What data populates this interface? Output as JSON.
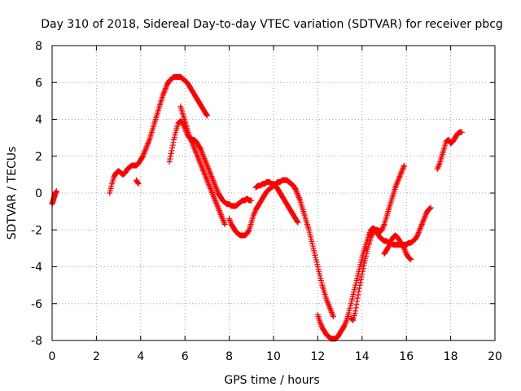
{
  "chart_data": {
    "type": "scatter",
    "title": "Day 310 of 2018, Sidereal Day-to-day VTEC variation (SDTVAR) for receiver pbcg",
    "xlabel": "GPS time / hours",
    "ylabel": "SDTVAR / TECUs",
    "xlim": [
      0,
      20
    ],
    "ylim": [
      -8,
      8
    ],
    "xticks": [
      0,
      2,
      4,
      6,
      8,
      10,
      12,
      14,
      16,
      18,
      20
    ],
    "yticks": [
      -8,
      -6,
      -4,
      -2,
      0,
      2,
      4,
      6,
      8
    ],
    "grid": true,
    "marker": "+",
    "color": "#ff0000",
    "segments": [
      {
        "x": [
          0.0,
          0.05,
          0.1,
          0.15,
          0.2
        ],
        "y": [
          -0.6,
          -0.4,
          -0.2,
          0.0,
          0.1
        ]
      },
      {
        "x": [
          2.6,
          2.7,
          2.8,
          2.9,
          3.0,
          3.1,
          3.2,
          3.3,
          3.4,
          3.5,
          3.6,
          3.7,
          3.8,
          3.9,
          4.0,
          4.1,
          4.2,
          4.3,
          4.4,
          4.5,
          4.6,
          4.7,
          4.8,
          4.9,
          5.0,
          5.1,
          5.2,
          5.3,
          5.4,
          5.5,
          5.6,
          5.7,
          5.8,
          5.9,
          6.0,
          6.1,
          6.2,
          6.3,
          6.4,
          6.5,
          6.6,
          6.7,
          6.8,
          6.9,
          7.0
        ],
        "y": [
          0.0,
          0.5,
          0.9,
          1.1,
          1.2,
          1.1,
          1.0,
          1.1,
          1.3,
          1.4,
          1.5,
          1.5,
          1.5,
          1.6,
          1.8,
          2.0,
          2.3,
          2.6,
          2.9,
          3.3,
          3.7,
          4.1,
          4.5,
          4.9,
          5.3,
          5.6,
          5.9,
          6.1,
          6.2,
          6.3,
          6.3,
          6.3,
          6.3,
          6.2,
          6.1,
          6.0,
          5.8,
          5.6,
          5.4,
          5.2,
          5.0,
          4.8,
          4.6,
          4.4,
          4.2
        ]
      },
      {
        "x": [
          3.8,
          3.9
        ],
        "y": [
          0.7,
          0.5
        ]
      },
      {
        "x": [
          5.3,
          5.4,
          5.5,
          5.6,
          5.7,
          5.8,
          5.9,
          6.0,
          6.1,
          6.2,
          6.3,
          6.4,
          6.5,
          6.6,
          6.7,
          6.8,
          6.9,
          7.0,
          7.1,
          7.2,
          7.3,
          7.4,
          7.5,
          7.6,
          7.7,
          7.8,
          7.9,
          8.0,
          8.1,
          8.2,
          8.3,
          8.4,
          8.5,
          8.6,
          8.7,
          8.8,
          8.9,
          9.0
        ],
        "y": [
          1.7,
          2.3,
          2.9,
          3.4,
          3.8,
          3.9,
          3.8,
          3.5,
          3.2,
          3.0,
          2.9,
          2.9,
          2.8,
          2.6,
          2.4,
          2.1,
          1.8,
          1.5,
          1.2,
          0.9,
          0.6,
          0.3,
          0.0,
          -0.2,
          -0.4,
          -0.5,
          -0.6,
          -0.6,
          -0.7,
          -0.7,
          -0.7,
          -0.6,
          -0.5,
          -0.4,
          -0.4,
          -0.3,
          -0.4,
          -0.4
        ]
      },
      {
        "x": [
          5.8,
          5.9,
          6.0,
          6.1,
          6.2,
          6.3,
          6.4,
          6.5,
          6.6,
          6.7,
          6.8,
          6.9,
          7.0,
          7.1,
          7.2,
          7.3,
          7.4,
          7.5,
          7.6,
          7.7,
          7.8
        ],
        "y": [
          4.7,
          4.3,
          3.9,
          3.5,
          3.1,
          2.8,
          2.5,
          2.2,
          1.9,
          1.6,
          1.3,
          1.0,
          0.7,
          0.4,
          0.1,
          -0.2,
          -0.5,
          -0.8,
          -1.1,
          -1.4,
          -1.7
        ]
      },
      {
        "x": [
          8.0,
          8.1,
          8.2,
          8.3,
          8.4,
          8.5,
          8.6,
          8.7,
          8.8,
          8.9,
          9.0,
          9.1,
          9.2,
          9.3,
          9.4,
          9.5,
          9.6,
          9.7,
          9.8,
          9.9,
          10.0,
          10.1,
          10.2,
          10.3,
          10.4,
          10.5,
          10.6,
          10.7,
          10.8,
          10.9,
          11.0,
          11.1,
          11.2,
          11.3,
          11.4,
          11.5,
          11.6,
          11.7,
          11.8,
          11.9,
          12.0,
          12.1,
          12.2,
          12.3,
          12.4,
          12.5,
          12.6,
          12.7
        ],
        "y": [
          -1.4,
          -1.7,
          -1.9,
          -2.1,
          -2.2,
          -2.3,
          -2.3,
          -2.3,
          -2.2,
          -2.0,
          -1.6,
          -1.2,
          -0.9,
          -0.7,
          -0.5,
          -0.3,
          -0.1,
          0.1,
          0.2,
          0.3,
          0.4,
          0.5,
          0.6,
          0.6,
          0.7,
          0.7,
          0.7,
          0.6,
          0.5,
          0.4,
          0.2,
          -0.1,
          -0.4,
          -0.8,
          -1.2,
          -1.6,
          -2.0,
          -2.5,
          -3.0,
          -3.5,
          -4.0,
          -4.5,
          -5.0,
          -5.4,
          -5.8,
          -6.1,
          -6.4,
          -6.7
        ]
      },
      {
        "x": [
          9.2,
          9.3,
          9.4,
          9.5,
          9.6,
          9.7,
          9.8,
          9.9,
          10.0,
          10.1,
          10.2,
          10.3,
          10.4,
          10.5,
          10.6,
          10.7,
          10.8,
          10.9,
          11.0,
          11.1
        ],
        "y": [
          0.3,
          0.4,
          0.4,
          0.5,
          0.5,
          0.6,
          0.6,
          0.5,
          0.5,
          0.4,
          0.2,
          0.0,
          -0.2,
          -0.4,
          -0.6,
          -0.8,
          -1.0,
          -1.2,
          -1.4,
          -1.6
        ]
      },
      {
        "x": [
          12.0,
          12.1,
          12.2,
          12.3,
          12.4,
          12.5,
          12.6,
          12.7,
          12.8,
          12.9,
          13.0,
          13.1,
          13.2,
          13.3,
          13.4,
          13.5,
          13.6,
          13.7,
          13.8,
          13.9,
          14.0,
          14.1,
          14.2,
          14.3,
          14.4,
          14.5,
          14.6,
          14.7,
          14.8,
          14.9,
          15.0,
          15.1,
          15.2,
          15.3,
          15.4,
          15.5,
          15.6,
          15.7,
          15.8,
          15.9,
          16.0,
          16.1,
          16.2,
          16.3,
          16.4,
          16.5,
          16.6,
          16.7,
          16.8,
          16.9,
          17.0,
          17.1
        ],
        "y": [
          -6.6,
          -7.0,
          -7.3,
          -7.5,
          -7.7,
          -7.8,
          -7.9,
          -7.9,
          -7.9,
          -7.8,
          -7.6,
          -7.4,
          -7.2,
          -6.9,
          -6.5,
          -6.0,
          -5.5,
          -5.0,
          -4.5,
          -4.0,
          -3.5,
          -3.1,
          -2.7,
          -2.3,
          -2.0,
          -1.9,
          -2.0,
          -2.2,
          -2.4,
          -2.5,
          -2.6,
          -2.6,
          -2.7,
          -2.7,
          -2.8,
          -2.8,
          -2.8,
          -2.8,
          -2.8,
          -2.8,
          -2.8,
          -2.7,
          -2.7,
          -2.6,
          -2.5,
          -2.3,
          -2.0,
          -1.7,
          -1.4,
          -1.1,
          -0.9,
          -0.8
        ]
      },
      {
        "x": [
          13.5,
          13.6,
          13.7,
          13.8,
          13.9,
          14.0,
          14.1,
          14.2,
          14.3,
          14.4,
          14.5,
          14.6,
          14.7,
          14.8,
          14.9,
          15.0,
          15.1,
          15.2,
          15.3,
          15.4,
          15.5,
          15.6,
          15.7,
          15.8,
          15.9
        ],
        "y": [
          -6.8,
          -6.9,
          -6.4,
          -5.7,
          -5.0,
          -4.4,
          -3.8,
          -3.3,
          -2.8,
          -2.4,
          -2.1,
          -2.0,
          -2.0,
          -2.1,
          -2.0,
          -1.7,
          -1.3,
          -0.9,
          -0.5,
          -0.1,
          0.3,
          0.6,
          0.9,
          1.2,
          1.5
        ]
      },
      {
        "x": [
          15.0,
          15.1,
          15.2,
          15.3,
          15.4,
          15.5,
          15.6,
          15.7,
          15.8,
          15.9,
          16.0,
          16.1,
          16.2
        ],
        "y": [
          -3.3,
          -3.1,
          -2.9,
          -2.6,
          -2.4,
          -2.3,
          -2.4,
          -2.6,
          -2.8,
          -3.0,
          -3.3,
          -3.5,
          -3.6
        ]
      },
      {
        "x": [
          17.4,
          17.5,
          17.6,
          17.7,
          17.8,
          17.9,
          18.0,
          18.1,
          18.2,
          18.3,
          18.4,
          18.5
        ],
        "y": [
          1.3,
          1.6,
          2.0,
          2.4,
          2.8,
          2.9,
          2.7,
          2.8,
          3.0,
          3.2,
          3.3,
          3.3
        ]
      }
    ]
  }
}
